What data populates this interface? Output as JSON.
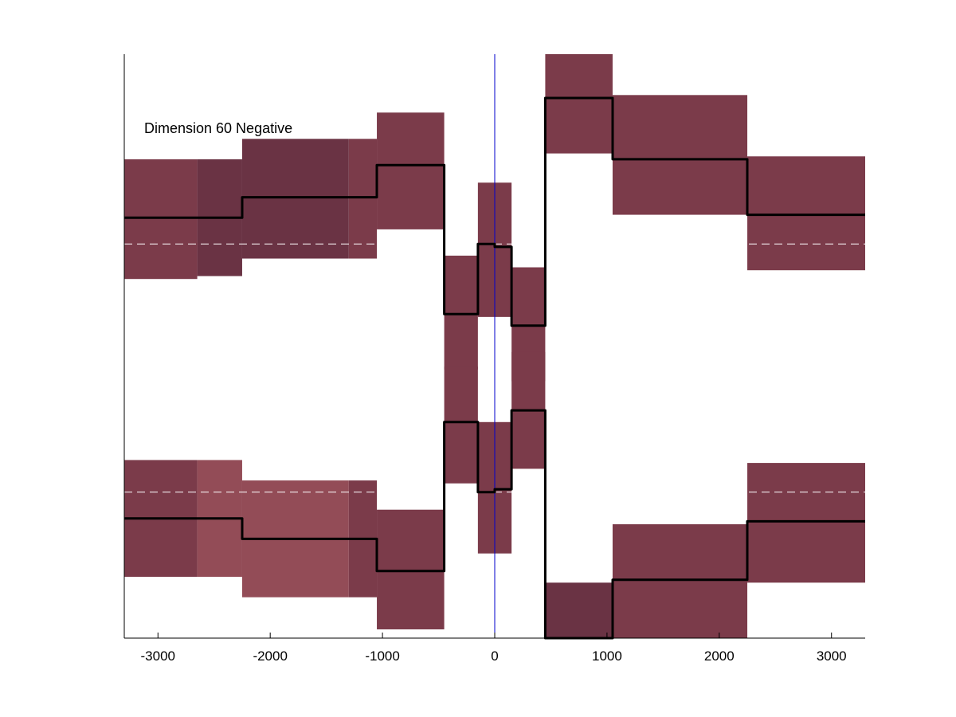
{
  "chart_data": {
    "type": "line",
    "annotation": "Dimension 60 Negative",
    "xlabel": "",
    "ylabel": "",
    "xlim": [
      -3300,
      3300
    ],
    "ylim": [
      0,
      1
    ],
    "x_ticks": [
      -3000,
      -2000,
      -1000,
      0,
      1000,
      2000,
      3000
    ],
    "x_tick_labels": [
      "-3000",
      "-2000",
      "-1000",
      "0",
      "1000",
      "2000",
      "3000"
    ],
    "y_ticks_visible": false,
    "grid": false,
    "legend": "none",
    "colors": {
      "band": "#7b3b4a",
      "band_dark": "#6a3344",
      "band_light": "#934c57",
      "line": "#000000",
      "reference_dashed": "#ffffff",
      "zero_line": "#0000cc"
    },
    "reference_lines": [
      0.675,
      0.25
    ],
    "zero_line_x": 0,
    "series": [
      {
        "steps": [
          {
            "x0": -3300,
            "x1": -2250,
            "y": 0.72
          },
          {
            "x0": -2250,
            "x1": -1050,
            "y": 0.755
          },
          {
            "x0": -1050,
            "x1": -450,
            "y": 0.81
          },
          {
            "x0": -450,
            "x1": -150,
            "y": 0.555
          },
          {
            "x0": -150,
            "x1": 0,
            "y": 0.675
          },
          {
            "x0": 0,
            "x1": 150,
            "y": 0.67
          },
          {
            "x0": 150,
            "x1": 450,
            "y": 0.535
          },
          {
            "x0": 450,
            "x1": 1050,
            "y": 0.925
          },
          {
            "x0": 1050,
            "x1": 2250,
            "y": 0.82
          },
          {
            "x0": 2250,
            "x1": 3300,
            "y": 0.725
          }
        ],
        "bands": [
          {
            "x0": -3300,
            "x1": -2650,
            "low": 0.615,
            "high": 0.82,
            "tone": "band"
          },
          {
            "x0": -2650,
            "x1": -2250,
            "low": 0.62,
            "high": 0.82,
            "tone": "band_dark"
          },
          {
            "x0": -2250,
            "x1": -1300,
            "low": 0.65,
            "high": 0.855,
            "tone": "band_dark"
          },
          {
            "x0": -1300,
            "x1": -1050,
            "low": 0.65,
            "high": 0.855,
            "tone": "band"
          },
          {
            "x0": -1050,
            "x1": -450,
            "low": 0.7,
            "high": 0.9,
            "tone": "band"
          },
          {
            "x0": -450,
            "x1": -150,
            "low": 0.46,
            "high": 0.655,
            "tone": "band"
          },
          {
            "x0": -150,
            "x1": 150,
            "low": 0.55,
            "high": 0.78,
            "tone": "band"
          },
          {
            "x0": 150,
            "x1": 450,
            "low": 0.44,
            "high": 0.635,
            "tone": "band"
          },
          {
            "x0": 450,
            "x1": 1050,
            "low": 0.83,
            "high": 1.0,
            "tone": "band"
          },
          {
            "x0": 1050,
            "x1": 2250,
            "low": 0.725,
            "high": 0.93,
            "tone": "band"
          },
          {
            "x0": 2250,
            "x1": 3300,
            "low": 0.63,
            "high": 0.825,
            "tone": "band"
          }
        ]
      },
      {
        "steps": [
          {
            "x0": -3300,
            "x1": -2250,
            "y": 0.205
          },
          {
            "x0": -2250,
            "x1": -1050,
            "y": 0.17
          },
          {
            "x0": -1050,
            "x1": -450,
            "y": 0.115
          },
          {
            "x0": -450,
            "x1": -150,
            "y": 0.37
          },
          {
            "x0": -150,
            "x1": 0,
            "y": 0.25
          },
          {
            "x0": 0,
            "x1": 150,
            "y": 0.255
          },
          {
            "x0": 150,
            "x1": 450,
            "y": 0.39
          },
          {
            "x0": 450,
            "x1": 1050,
            "y": 0.0
          },
          {
            "x0": 1050,
            "x1": 2250,
            "y": 0.1
          },
          {
            "x0": 2250,
            "x1": 3300,
            "y": 0.2
          }
        ],
        "bands": [
          {
            "x0": -3300,
            "x1": -2650,
            "low": 0.105,
            "high": 0.305,
            "tone": "band"
          },
          {
            "x0": -2650,
            "x1": -2250,
            "low": 0.105,
            "high": 0.305,
            "tone": "band_light"
          },
          {
            "x0": -2250,
            "x1": -1300,
            "low": 0.07,
            "high": 0.27,
            "tone": "band_light"
          },
          {
            "x0": -1300,
            "x1": -1050,
            "low": 0.07,
            "high": 0.27,
            "tone": "band"
          },
          {
            "x0": -1050,
            "x1": -450,
            "low": 0.015,
            "high": 0.22,
            "tone": "band"
          },
          {
            "x0": -450,
            "x1": -150,
            "low": 0.265,
            "high": 0.465,
            "tone": "band"
          },
          {
            "x0": -150,
            "x1": 150,
            "low": 0.145,
            "high": 0.37,
            "tone": "band"
          },
          {
            "x0": 150,
            "x1": 450,
            "low": 0.29,
            "high": 0.49,
            "tone": "band"
          },
          {
            "x0": 450,
            "x1": 1050,
            "low": 0.0,
            "high": 0.095,
            "tone": "band_dark"
          },
          {
            "x0": 1050,
            "x1": 2250,
            "low": 0.0,
            "high": 0.195,
            "tone": "band"
          },
          {
            "x0": 2250,
            "x1": 3300,
            "low": 0.095,
            "high": 0.3,
            "tone": "band"
          }
        ]
      }
    ]
  }
}
